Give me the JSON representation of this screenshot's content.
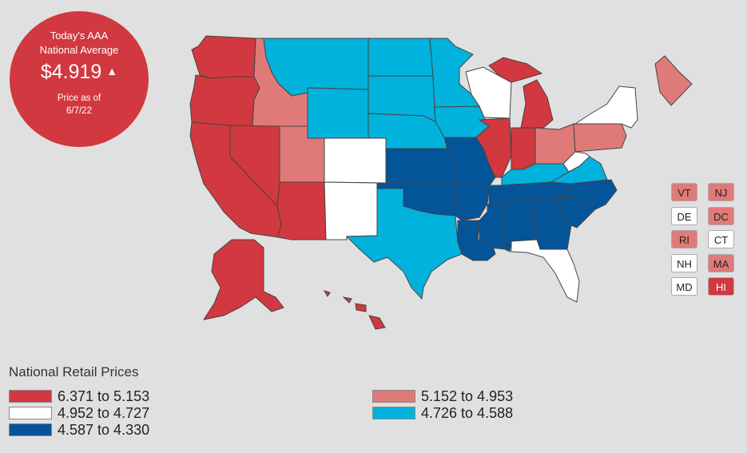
{
  "badge": {
    "line1": "Today's AAA",
    "line2": "National Average",
    "price": "$4.919",
    "trend": "up",
    "asof1": "Price as of",
    "asof2": "6/7/22"
  },
  "colors": {
    "tier1": "#d2383f",
    "tier2": "#e07a78",
    "tier3": "#ffffff",
    "tier4": "#00b2dc",
    "tier5": "#04549a"
  },
  "legend": {
    "title": "National Retail Prices",
    "items": [
      {
        "range": "6.371 to 5.153",
        "tier": "tier1"
      },
      {
        "range": "4.952 to 4.727",
        "tier": "tier3"
      },
      {
        "range": "4.587 to 4.330",
        "tier": "tier5"
      },
      {
        "range": "5.152 to 4.953",
        "tier": "tier2"
      },
      {
        "range": "4.726 to 4.588",
        "tier": "tier4"
      }
    ]
  },
  "small_states": [
    {
      "abbr": "VT",
      "tier": "tier2"
    },
    {
      "abbr": "NJ",
      "tier": "tier2"
    },
    {
      "abbr": "DE",
      "tier": "tier3"
    },
    {
      "abbr": "DC",
      "tier": "tier2"
    },
    {
      "abbr": "RI",
      "tier": "tier2"
    },
    {
      "abbr": "CT",
      "tier": "tier3"
    },
    {
      "abbr": "NH",
      "tier": "tier3"
    },
    {
      "abbr": "MA",
      "tier": "tier2"
    },
    {
      "abbr": "MD",
      "tier": "tier3"
    },
    {
      "abbr": "HI",
      "tier": "tier1"
    }
  ],
  "states": {
    "WA": "tier1",
    "OR": "tier1",
    "CA": "tier1",
    "NV": "tier1",
    "AZ": "tier1",
    "AK": "tier1",
    "HI": "tier1",
    "IL": "tier1",
    "IN": "tier1",
    "MI": "tier1",
    "ID": "tier2",
    "UT": "tier2",
    "OH": "tier2",
    "PA": "tier2",
    "ME": "tier2",
    "NY": "tier3",
    "CO": "tier3",
    "NM": "tier3",
    "WI": "tier3",
    "FL": "tier3",
    "WV": "tier3",
    "MT": "tier4",
    "WY": "tier4",
    "ND": "tier4",
    "SD": "tier4",
    "NE": "tier4",
    "MN": "tier4",
    "IA": "tier4",
    "TX": "tier4",
    "KY": "tier4",
    "VA": "tier4",
    "KS": "tier5",
    "MO": "tier5",
    "OK": "tier5",
    "AR": "tier5",
    "LA": "tier5",
    "MS": "tier5",
    "AL": "tier5",
    "GA": "tier5",
    "TN": "tier5",
    "SC": "tier5",
    "NC": "tier5"
  }
}
